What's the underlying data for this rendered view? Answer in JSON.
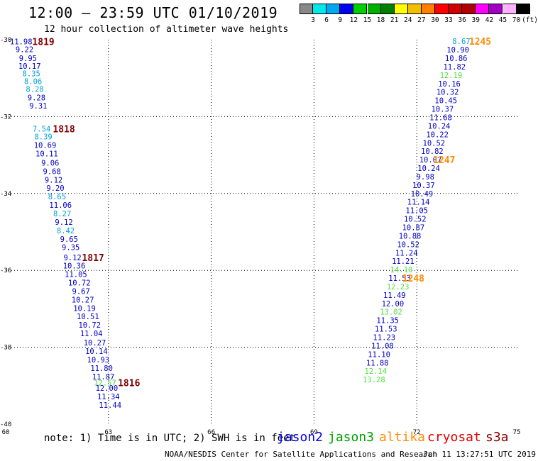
{
  "title": "12:00 – 23:59 UTC 01/10/2019",
  "subtitle": "12 hour collection of altimeter wave heights",
  "color_scale": {
    "labels": [
      "3",
      "6",
      "9",
      "12",
      "15",
      "18",
      "21",
      "24",
      "27",
      "30",
      "33",
      "36",
      "39",
      "42",
      "45",
      "70",
      "(ft)"
    ],
    "colors": [
      "#888888",
      "#00e8e8",
      "#00a8f0",
      "#0000f0",
      "#00d000",
      "#00b000",
      "#008000",
      "#ffff00",
      "#f0c000",
      "#ff8000",
      "#ff0000",
      "#d00000",
      "#b00000",
      "#ff00ff",
      "#a000c0",
      "#ffb0ff",
      "#000000"
    ]
  },
  "note": "note: 1) Time is in UTC; 2) SWH is in feet",
  "legend": [
    {
      "name": "jason2",
      "color": "#0000ee"
    },
    {
      "name": "jason3",
      "color": "#00a000"
    },
    {
      "name": "altika",
      "color": "#ff8c00"
    },
    {
      "name": "cryosat",
      "color": "#e00000"
    },
    {
      "name": "s3a",
      "color": "#8b0000"
    }
  ],
  "credit": "NOAA/NESDIS Center for Satellite Applications and Research",
  "timestamp": "Jan 11 13:27:51 UTC 2019",
  "colors": {
    "blue": "#0000c8",
    "lightblue": "#00a0e0",
    "green": "#50e040",
    "orange": "#ff8c00",
    "maroon": "#800000"
  },
  "chart_data": {
    "type": "scatter",
    "xlim": [
      60,
      75
    ],
    "ylim": [
      -40,
      -30
    ],
    "x_ticks": [
      "60",
      "63",
      "66",
      "69",
      "72",
      "75"
    ],
    "y_ticks": [
      "-30",
      "-32",
      "-34",
      "-36",
      "-38",
      "-40"
    ],
    "grid": true,
    "series": [
      {
        "name": "s3a",
        "color_key": "maroon",
        "points": [
          {
            "x": 60.45,
            "y": -30.05,
            "label": "11.98",
            "c": "blue"
          },
          {
            "x": 60.55,
            "y": -30.25,
            "label": "9.22",
            "c": "blue"
          },
          {
            "x": 60.65,
            "y": -30.48,
            "label": "9.95",
            "c": "blue"
          },
          {
            "x": 60.7,
            "y": -30.68,
            "label": "10.17",
            "c": "blue"
          },
          {
            "x": 60.75,
            "y": -30.88,
            "label": "8.35",
            "c": "lightblue"
          },
          {
            "x": 60.8,
            "y": -31.08,
            "label": "8.06",
            "c": "lightblue"
          },
          {
            "x": 60.85,
            "y": -31.28,
            "label": "8.28",
            "c": "lightblue"
          },
          {
            "x": 60.9,
            "y": -31.5,
            "label": "9.28",
            "c": "blue"
          },
          {
            "x": 60.95,
            "y": -31.72,
            "label": "9.31",
            "c": "blue"
          },
          {
            "x": 61.05,
            "y": -32.32,
            "label": "7.54",
            "c": "lightblue"
          },
          {
            "x": 61.1,
            "y": -32.52,
            "label": "8.39",
            "c": "lightblue"
          },
          {
            "x": 61.15,
            "y": -32.74,
            "label": "10.69",
            "c": "blue"
          },
          {
            "x": 61.2,
            "y": -32.96,
            "label": "10.11",
            "c": "blue"
          },
          {
            "x": 61.3,
            "y": -33.2,
            "label": "9.06",
            "c": "blue"
          },
          {
            "x": 61.35,
            "y": -33.42,
            "label": "9.68",
            "c": "blue"
          },
          {
            "x": 61.4,
            "y": -33.64,
            "label": "9.12",
            "c": "blue"
          },
          {
            "x": 61.45,
            "y": -33.86,
            "label": "9.20",
            "c": "blue"
          },
          {
            "x": 61.5,
            "y": -34.08,
            "label": "8.65",
            "c": "lightblue"
          },
          {
            "x": 61.6,
            "y": -34.3,
            "label": "11.06",
            "c": "blue"
          },
          {
            "x": 61.65,
            "y": -34.52,
            "label": "8.27",
            "c": "lightblue"
          },
          {
            "x": 61.7,
            "y": -34.74,
            "label": "9.12",
            "c": "blue"
          },
          {
            "x": 61.75,
            "y": -34.96,
            "label": "8.42",
            "c": "lightblue"
          },
          {
            "x": 61.85,
            "y": -35.18,
            "label": "9.65",
            "c": "blue"
          },
          {
            "x": 61.9,
            "y": -35.4,
            "label": "9.35",
            "c": "blue"
          },
          {
            "x": 61.95,
            "y": -35.66,
            "label": "9.12",
            "c": "blue"
          },
          {
            "x": 62.0,
            "y": -35.88,
            "label": "10.36",
            "c": "blue"
          },
          {
            "x": 62.05,
            "y": -36.1,
            "label": "11.05",
            "c": "blue"
          },
          {
            "x": 62.15,
            "y": -36.32,
            "label": "10.72",
            "c": "blue"
          },
          {
            "x": 62.2,
            "y": -36.54,
            "label": "9.67",
            "c": "blue"
          },
          {
            "x": 62.25,
            "y": -36.76,
            "label": "10.27",
            "c": "blue"
          },
          {
            "x": 62.3,
            "y": -36.98,
            "label": "10.19",
            "c": "blue"
          },
          {
            "x": 62.4,
            "y": -37.2,
            "label": "10.51",
            "c": "blue"
          },
          {
            "x": 62.45,
            "y": -37.42,
            "label": "10.72",
            "c": "blue"
          },
          {
            "x": 62.5,
            "y": -37.64,
            "label": "11.04",
            "c": "blue"
          },
          {
            "x": 62.6,
            "y": -37.88,
            "label": "10.27",
            "c": "blue"
          },
          {
            "x": 62.65,
            "y": -38.1,
            "label": "10.14",
            "c": "blue"
          },
          {
            "x": 62.7,
            "y": -38.32,
            "label": "10.93",
            "c": "blue"
          },
          {
            "x": 62.8,
            "y": -38.54,
            "label": "11.80",
            "c": "blue"
          },
          {
            "x": 62.85,
            "y": -38.76,
            "label": "11.87",
            "c": "blue"
          },
          {
            "x": 62.9,
            "y": -38.92,
            "label": "12.57",
            "c": "green"
          },
          {
            "x": 62.95,
            "y": -39.06,
            "label": "12.00",
            "c": "blue"
          },
          {
            "x": 63.0,
            "y": -39.28,
            "label": "11.34",
            "c": "blue"
          },
          {
            "x": 63.05,
            "y": -39.5,
            "label": "11.44",
            "c": "blue"
          }
        ]
      },
      {
        "name": "altika",
        "color_key": "orange",
        "points": [
          {
            "x": 73.3,
            "y": -30.04,
            "label": "8.67",
            "c": "lightblue"
          },
          {
            "x": 73.2,
            "y": -30.26,
            "label": "10.90",
            "c": "blue"
          },
          {
            "x": 73.15,
            "y": -30.48,
            "label": "10.86",
            "c": "blue"
          },
          {
            "x": 73.1,
            "y": -30.7,
            "label": "11.82",
            "c": "blue"
          },
          {
            "x": 73.0,
            "y": -30.92,
            "label": "12.19",
            "c": "green"
          },
          {
            "x": 72.95,
            "y": -31.14,
            "label": "10.16",
            "c": "blue"
          },
          {
            "x": 72.9,
            "y": -31.36,
            "label": "10.32",
            "c": "blue"
          },
          {
            "x": 72.85,
            "y": -31.58,
            "label": "10.45",
            "c": "blue"
          },
          {
            "x": 72.75,
            "y": -31.8,
            "label": "10.37",
            "c": "blue"
          },
          {
            "x": 72.7,
            "y": -32.02,
            "label": "11.68",
            "c": "blue"
          },
          {
            "x": 72.65,
            "y": -32.24,
            "label": "10.24",
            "c": "blue"
          },
          {
            "x": 72.6,
            "y": -32.46,
            "label": "10.22",
            "c": "blue"
          },
          {
            "x": 72.5,
            "y": -32.68,
            "label": "10.52",
            "c": "blue"
          },
          {
            "x": 72.45,
            "y": -32.9,
            "label": "10.82",
            "c": "blue"
          },
          {
            "x": 72.4,
            "y": -33.12,
            "label": "10.07",
            "c": "blue"
          },
          {
            "x": 72.35,
            "y": -33.34,
            "label": "10.24",
            "c": "blue"
          },
          {
            "x": 72.25,
            "y": -33.56,
            "label": "9.98",
            "c": "blue"
          },
          {
            "x": 72.2,
            "y": -33.78,
            "label": "10.37",
            "c": "blue"
          },
          {
            "x": 72.15,
            "y": -34.0,
            "label": "10.49",
            "c": "blue"
          },
          {
            "x": 72.05,
            "y": -34.22,
            "label": "11.14",
            "c": "blue"
          },
          {
            "x": 72.0,
            "y": -34.44,
            "label": "11.05",
            "c": "blue"
          },
          {
            "x": 71.95,
            "y": -34.66,
            "label": "10.52",
            "c": "blue"
          },
          {
            "x": 71.9,
            "y": -34.88,
            "label": "10.87",
            "c": "blue"
          },
          {
            "x": 71.8,
            "y": -35.1,
            "label": "10.88",
            "c": "blue"
          },
          {
            "x": 71.75,
            "y": -35.32,
            "label": "10.52",
            "c": "blue"
          },
          {
            "x": 71.7,
            "y": -35.54,
            "label": "11.24",
            "c": "blue"
          },
          {
            "x": 71.6,
            "y": -35.76,
            "label": "11.21",
            "c": "blue"
          },
          {
            "x": 71.55,
            "y": -35.98,
            "label": "14.10",
            "c": "green"
          },
          {
            "x": 71.5,
            "y": -36.2,
            "label": "11.53",
            "c": "blue"
          },
          {
            "x": 71.45,
            "y": -36.42,
            "label": "12.23",
            "c": "green"
          },
          {
            "x": 71.35,
            "y": -36.64,
            "label": "11.49",
            "c": "blue"
          },
          {
            "x": 71.3,
            "y": -36.86,
            "label": "12.00",
            "c": "blue"
          },
          {
            "x": 71.25,
            "y": -37.08,
            "label": "13.02",
            "c": "green"
          },
          {
            "x": 71.15,
            "y": -37.3,
            "label": "11.35",
            "c": "blue"
          },
          {
            "x": 71.1,
            "y": -37.52,
            "label": "11.53",
            "c": "blue"
          },
          {
            "x": 71.05,
            "y": -37.74,
            "label": "11.23",
            "c": "blue"
          },
          {
            "x": 71.0,
            "y": -37.96,
            "label": "11.08",
            "c": "blue"
          },
          {
            "x": 70.9,
            "y": -38.18,
            "label": "11.10",
            "c": "blue"
          },
          {
            "x": 70.85,
            "y": -38.4,
            "label": "11.88",
            "c": "blue"
          },
          {
            "x": 70.8,
            "y": -38.62,
            "label": "12.14",
            "c": "green"
          },
          {
            "x": 70.75,
            "y": -38.84,
            "label": "13.28",
            "c": "green"
          }
        ]
      }
    ],
    "time_labels": [
      {
        "text": "1819",
        "x": 61.1,
        "y": -30.05,
        "color_key": "maroon"
      },
      {
        "text": "1818",
        "x": 61.7,
        "y": -32.32,
        "color_key": "maroon"
      },
      {
        "text": "1817",
        "x": 62.55,
        "y": -35.66,
        "color_key": "maroon"
      },
      {
        "text": "1816",
        "x": 63.6,
        "y": -38.92,
        "color_key": "maroon"
      },
      {
        "text": "1245",
        "x": 73.85,
        "y": -30.04,
        "color_key": "orange"
      },
      {
        "text": "1247",
        "x": 72.8,
        "y": -33.12,
        "color_key": "orange"
      },
      {
        "text": "1248",
        "x": 71.9,
        "y": -36.2,
        "color_key": "orange"
      }
    ]
  }
}
